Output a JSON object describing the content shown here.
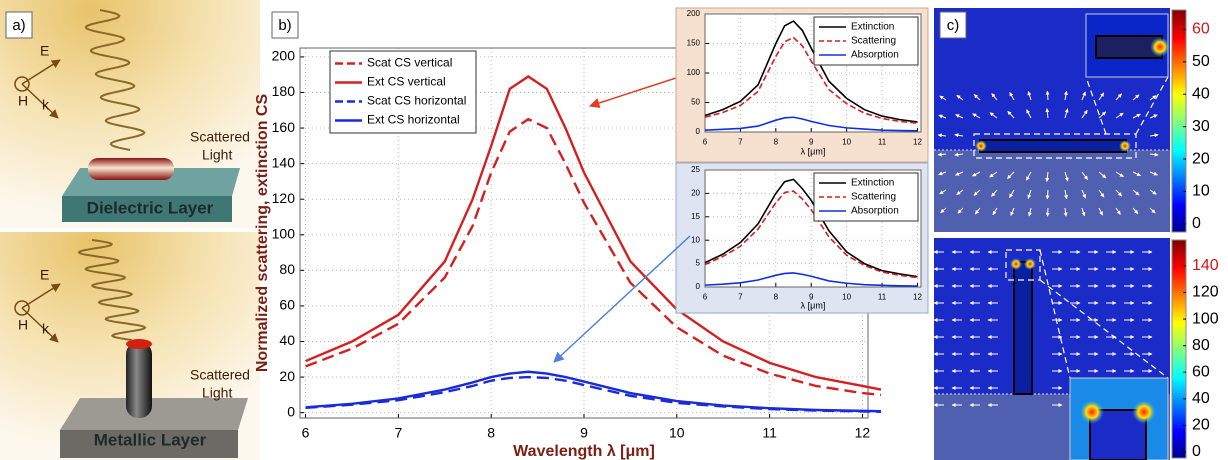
{
  "panel_a": {
    "label": "a)",
    "top": {
      "e": "E",
      "h": "H",
      "k": "k",
      "scattered": [
        "Scattered",
        "Light"
      ],
      "layer": "Dielectric Layer"
    },
    "bottom": {
      "e": "E",
      "h": "H",
      "k": "k",
      "scattered": [
        "Scattered",
        "Light"
      ],
      "layer": "Metallic Layer"
    }
  },
  "panel_b": {
    "label": "b)"
  },
  "chart_data": [
    {
      "type": "line",
      "xlabel": "Wavelength λ [μm]",
      "ylabel": "Normalized scattering, extinction CS",
      "x": [
        6,
        6.5,
        7,
        7.5,
        7.8,
        8,
        8.2,
        8.4,
        8.6,
        8.8,
        9,
        9.5,
        10,
        10.5,
        11,
        11.5,
        12,
        12.2
      ],
      "series": [
        {
          "name": "Scat CS vertical",
          "color": "#d42020",
          "dash": true,
          "values": [
            26,
            36,
            50,
            76,
            105,
            135,
            158,
            165,
            160,
            140,
            118,
            73,
            48,
            32,
            22,
            15,
            11,
            10
          ]
        },
        {
          "name": "Ext CS vertical",
          "color": "#d42020",
          "dash": false,
          "values": [
            29,
            40,
            55,
            85,
            120,
            150,
            182,
            189,
            182,
            160,
            135,
            85,
            58,
            40,
            28,
            20,
            15,
            13
          ]
        },
        {
          "name": "Scat CS horizontal",
          "color": "#1a2bd8",
          "dash": true,
          "values": [
            2.7,
            4.5,
            7,
            11.5,
            15,
            18,
            19.5,
            20,
            19.5,
            18,
            15.5,
            9.5,
            5.5,
            3.5,
            2,
            1.2,
            0.7,
            0.5
          ]
        },
        {
          "name": "Ext CS horizontal",
          "color": "#1a2bd8",
          "dash": false,
          "values": [
            3,
            5,
            8,
            13,
            17,
            20,
            22,
            23,
            22,
            20,
            17.5,
            11,
            6.5,
            4,
            2.5,
            1.5,
            1,
            0.8
          ]
        }
      ],
      "xlim": [
        5.94,
        12.06
      ],
      "ylim": [
        -3,
        205
      ],
      "xticks": [
        6,
        7,
        8,
        9,
        10,
        11,
        12
      ],
      "yticks": [
        0,
        20,
        40,
        60,
        80,
        100,
        120,
        140,
        160,
        180,
        200
      ],
      "grid": true,
      "legend": "upper left"
    },
    {
      "type": "line",
      "xlabel": "λ [μm]",
      "x": [
        6,
        6.5,
        7,
        7.5,
        8,
        8.25,
        8.5,
        8.75,
        9,
        9.5,
        10,
        10.5,
        11,
        11.5,
        12
      ],
      "series": [
        {
          "name": "Extinction",
          "color": "#000000",
          "dash": false,
          "values": [
            28,
            38,
            52,
            80,
            150,
            180,
            188,
            172,
            142,
            86,
            57,
            38,
            27,
            21,
            17
          ]
        },
        {
          "name": "Scattering",
          "color": "#d42020",
          "dash": true,
          "values": [
            25,
            33,
            45,
            69,
            128,
            153,
            160,
            146,
            120,
            72,
            48,
            32,
            23,
            18,
            15
          ]
        },
        {
          "name": "Absorption",
          "color": "#1030e0",
          "dash": false,
          "values": [
            3,
            4.5,
            6,
            10,
            20,
            24,
            25,
            22,
            18,
            11,
            7,
            5,
            3,
            2.5,
            2
          ]
        }
      ],
      "xlim": [
        6,
        12.1
      ],
      "ylim": [
        0,
        200
      ],
      "xticks": [
        6,
        7,
        8,
        9,
        10,
        11,
        12
      ],
      "yticks": [
        0,
        50,
        100,
        150,
        200
      ],
      "grid": true,
      "legend": "upper right"
    },
    {
      "type": "line",
      "xlabel": "λ [μm]",
      "x": [
        6,
        6.5,
        7,
        7.5,
        8,
        8.25,
        8.5,
        8.75,
        9,
        9.5,
        10,
        10.5,
        11,
        11.5,
        12
      ],
      "series": [
        {
          "name": "Extinction",
          "color": "#000000",
          "dash": false,
          "values": [
            5.2,
            7,
            9.5,
            13.5,
            20,
            22.5,
            23,
            21,
            18.5,
            12,
            7.5,
            5,
            3.5,
            2.8,
            2.2
          ]
        },
        {
          "name": "Scattering",
          "color": "#d42020",
          "dash": true,
          "values": [
            4.8,
            6.5,
            8.7,
            12.4,
            18,
            20.2,
            20.5,
            18.8,
            16.5,
            10.7,
            6.8,
            4.6,
            3.2,
            2.5,
            2
          ]
        },
        {
          "name": "Absorption",
          "color": "#1030e0",
          "dash": false,
          "values": [
            0.4,
            0.6,
            0.9,
            1.5,
            2.5,
            2.9,
            3,
            2.7,
            2.3,
            1.3,
            0.8,
            0.5,
            0.35,
            0.25,
            0.2
          ]
        }
      ],
      "xlim": [
        6,
        12.1
      ],
      "ylim": [
        0,
        25
      ],
      "xticks": [
        6,
        7,
        8,
        9,
        10,
        11,
        12
      ],
      "yticks": [
        0,
        5,
        10,
        15,
        20,
        25
      ],
      "grid": true,
      "legend": "upper right"
    }
  ],
  "panel_c": {
    "label": "c)",
    "colorbars": [
      {
        "lim": [
          -2.5,
          66
        ],
        "ticks": [
          0,
          10,
          20,
          30,
          40,
          50,
          60
        ]
      },
      {
        "lim": [
          -4.5,
          159.5
        ],
        "ticks": [
          0,
          20,
          40,
          60,
          80,
          100,
          120,
          140
        ]
      }
    ]
  }
}
